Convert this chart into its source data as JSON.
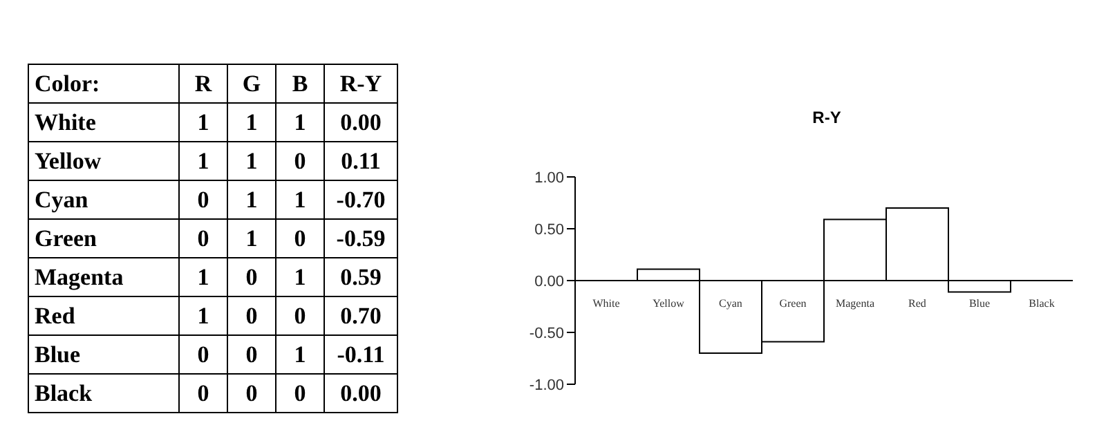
{
  "chart_data": [
    {
      "type": "heatmap",
      "ylabel": "Color:",
      "categories": [
        "R",
        "G",
        "B",
        "R-Y"
      ],
      "y_categories": [
        "White",
        "Yellow",
        "Cyan",
        "Green",
        "Magenta",
        "Red",
        "Blue",
        "Black"
      ],
      "cells": [
        [
          1,
          1,
          1,
          0
        ],
        [
          1,
          1,
          0,
          0.11
        ],
        [
          0,
          1,
          1,
          -0.7
        ],
        [
          0,
          1,
          0,
          -0.59
        ],
        [
          1,
          0,
          1,
          0.59
        ],
        [
          1,
          0,
          0,
          0.7
        ],
        [
          0,
          0,
          1,
          -0.11
        ],
        [
          0,
          0,
          0,
          0
        ]
      ],
      "cell_labels": [
        [
          "1",
          "1",
          "1",
          "0.00"
        ],
        [
          "1",
          "1",
          "0",
          "0.11"
        ],
        [
          "0",
          "1",
          "1",
          "-0.70"
        ],
        [
          "0",
          "1",
          "0",
          "-0.59"
        ],
        [
          "1",
          "0",
          "1",
          "0.59"
        ],
        [
          "1",
          "0",
          "0",
          "0.70"
        ],
        [
          "0",
          "0",
          "1",
          "-0.11"
        ],
        [
          "0",
          "0",
          "0",
          "0.00"
        ]
      ]
    },
    {
      "type": "bar",
      "title": "R-Y",
      "categories": [
        "White",
        "Yellow",
        "Cyan",
        "Green",
        "Magenta",
        "Red",
        "Blue",
        "Black"
      ],
      "values": [
        0,
        0.11,
        -0.7,
        -0.59,
        0.59,
        0.7,
        -0.11,
        0
      ],
      "color": "#000000",
      "ylim": [
        -1,
        1
      ],
      "yticks": [
        {
          "value": -1,
          "label": "-1.00"
        },
        {
          "value": -0.5,
          "label": "-0.50"
        },
        {
          "value": 0,
          "label": "0.00"
        },
        {
          "value": 0.5,
          "label": "0.50"
        },
        {
          "value": 1,
          "label": "1.00"
        }
      ],
      "grid": false,
      "legend": false
    }
  ]
}
